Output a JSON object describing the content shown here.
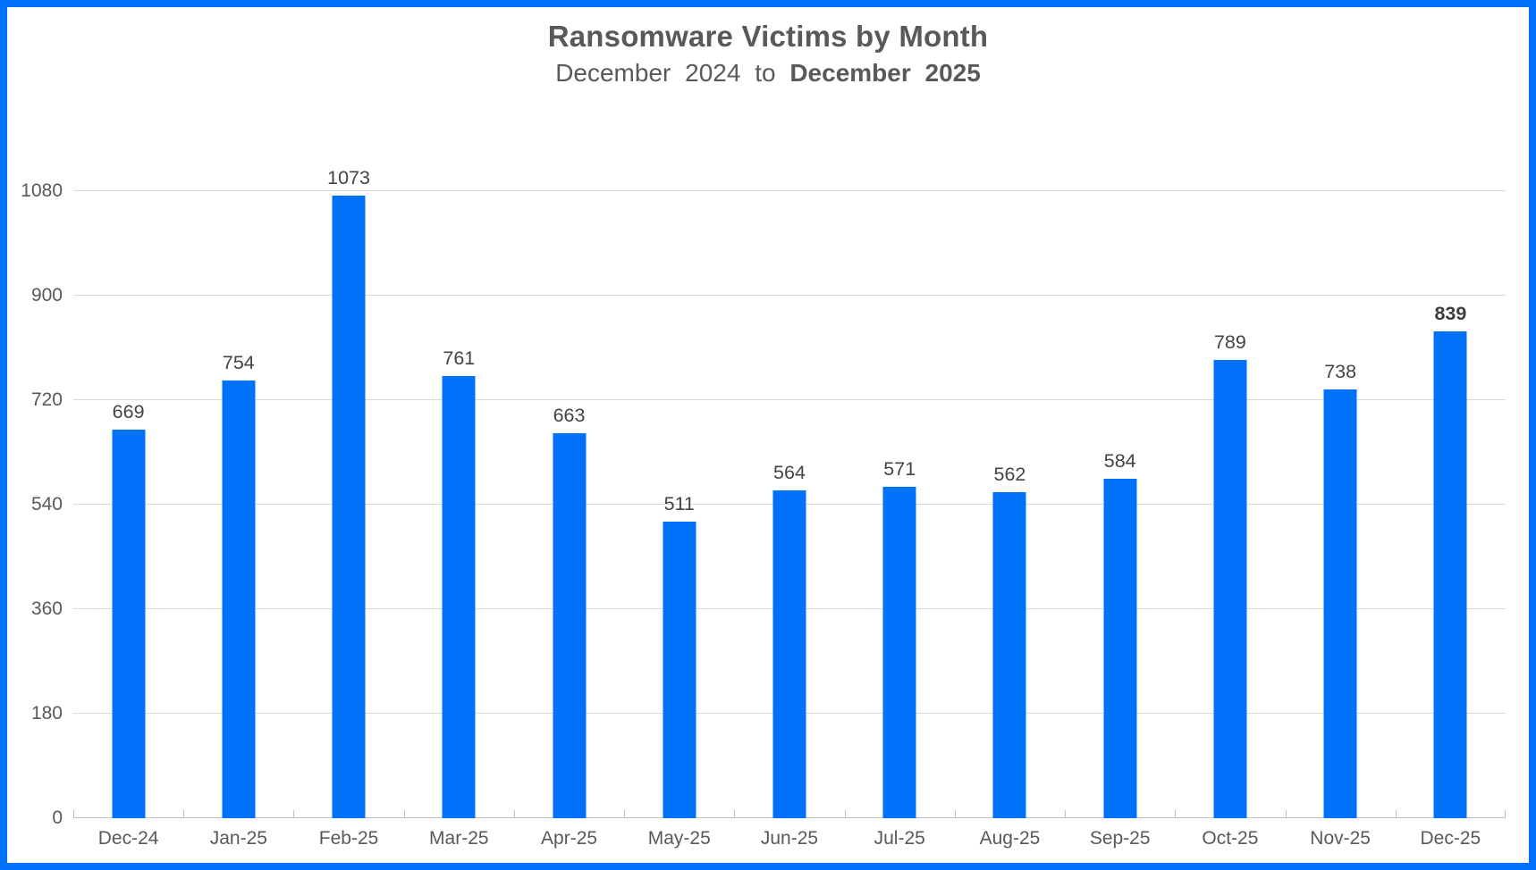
{
  "chart_data": {
    "type": "bar",
    "title": "Ransomware Victims by Month",
    "subtitle": {
      "prefix": "December 2024 to",
      "bold_suffix": "December 2025"
    },
    "categories": [
      "Dec-24",
      "Jan-25",
      "Feb-25",
      "Mar-25",
      "Apr-25",
      "May-25",
      "Jun-25",
      "Jul-25",
      "Aug-25",
      "Sep-25",
      "Oct-25",
      "Nov-25",
      "Dec-25"
    ],
    "values": [
      669,
      754,
      1073,
      761,
      663,
      511,
      564,
      571,
      562,
      584,
      789,
      738,
      839
    ],
    "data_labels_shown": true,
    "bold_value_index": 12,
    "xlabel": "",
    "ylabel": "",
    "y_ticks": [
      0,
      180,
      360,
      540,
      720,
      900,
      1080
    ],
    "ylim": [
      0,
      1080
    ],
    "grid": true,
    "legend_position": "none",
    "colors": {
      "bar": "#0072fa",
      "frame_border": "#0072fa",
      "title_text": "#595959",
      "tick_text": "#595959",
      "value_label_text": "#444444",
      "gridline": "#d9d9d9",
      "axis_line": "#bfbfbf"
    }
  }
}
